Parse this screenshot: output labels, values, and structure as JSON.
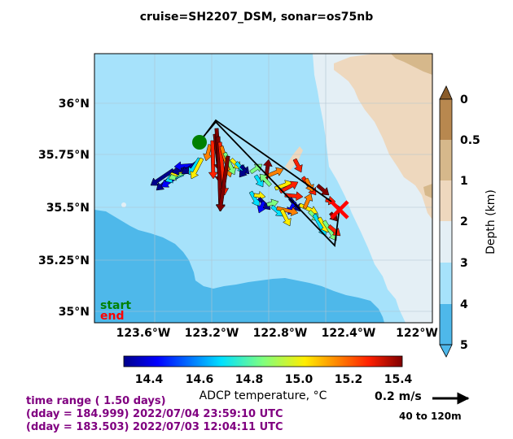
{
  "title": {
    "cruise": "cruise=SH2207_DSM,",
    "sonar": "sonar=os75nb"
  },
  "map": {
    "lat_labels": [
      "36°N",
      "35.75°N",
      "35.5°N",
      "35.25°N",
      "35°N"
    ],
    "lon_labels": [
      "123.6°W",
      "123.2°W",
      "122.8°W",
      "122.4°W",
      "122°W"
    ],
    "start_label": "start",
    "end_label": "end",
    "colors": {
      "ocean_deep": "#4eb8ea",
      "ocean_mid": "#a6e2fb",
      "ocean_shelf": "#e4eff5",
      "land_low": "#eed8be",
      "land_high": "#d6b88b",
      "start": "#008000",
      "end": "#ff0000"
    }
  },
  "depth_colorbar": {
    "label": "Depth (km)",
    "ticks": [
      "0",
      "0.5",
      "1",
      "2",
      "3",
      "4",
      "5"
    ]
  },
  "temp_colorbar": {
    "label": "ADCP temperature, °C",
    "ticks": [
      "14.4",
      "14.6",
      "14.8",
      "15.0",
      "15.2",
      "15.4"
    ]
  },
  "scale": {
    "label": "0.2 m/s",
    "depth_range": "40 to 120m"
  },
  "time_info": {
    "range": "time range ( 1.50 days)",
    "end_line": "(dday = 184.999) 2022/07/04 23:59:10 UTC",
    "start_line": "(dday = 183.503) 2022/07/03 12:04:11 UTC"
  }
}
